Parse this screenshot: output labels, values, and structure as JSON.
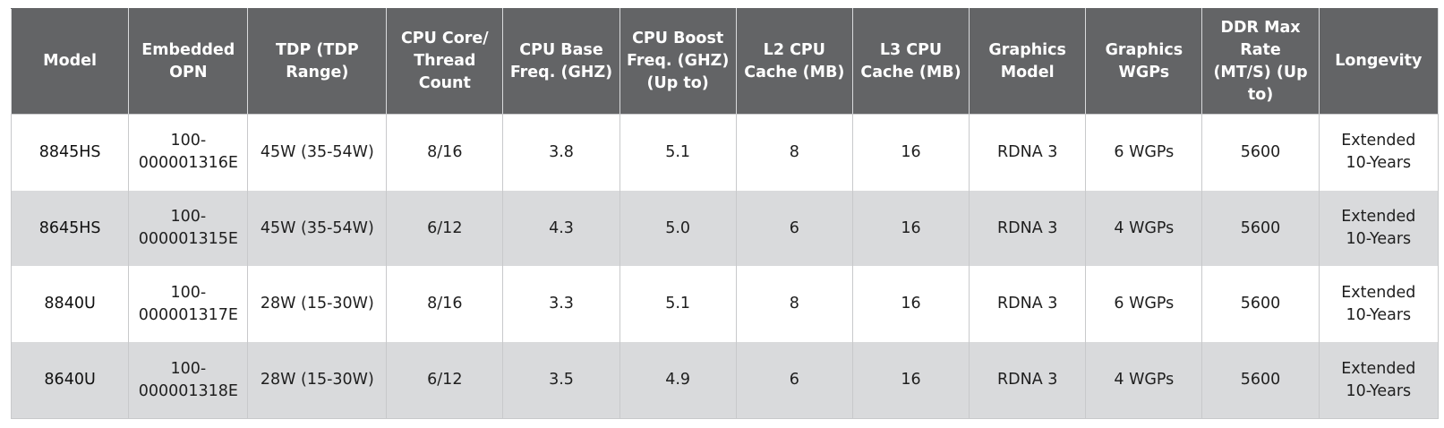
{
  "table": {
    "headers": [
      [
        "Model"
      ],
      [
        "Embedded",
        "OPN"
      ],
      [
        "TDP (TDP",
        "Range)"
      ],
      [
        "CPU Core/",
        "Thread",
        "Count"
      ],
      [
        "CPU Base",
        "Freq. (GHZ)"
      ],
      [
        "CPU Boost",
        "Freq. (GHZ)",
        "(Up to)"
      ],
      [
        "L2 CPU",
        "Cache (MB)"
      ],
      [
        "L3 CPU",
        "Cache (MB)"
      ],
      [
        "Graphics",
        "Model"
      ],
      [
        "Graphics",
        "WGPs"
      ],
      [
        "DDR Max",
        "Rate",
        "(MT/S) (Up",
        "to)"
      ],
      [
        "Longevity"
      ]
    ],
    "rows": [
      [
        [
          "8845HS"
        ],
        [
          "100-",
          "000001316E"
        ],
        [
          "45W (35-54W)"
        ],
        [
          "8/16"
        ],
        [
          "3.8"
        ],
        [
          "5.1"
        ],
        [
          "8"
        ],
        [
          "16"
        ],
        [
          "RDNA 3"
        ],
        [
          "6 WGPs"
        ],
        [
          "5600"
        ],
        [
          "Extended",
          "10-Years"
        ]
      ],
      [
        [
          "8645HS"
        ],
        [
          "100-",
          "000001315E"
        ],
        [
          "45W (35-54W)"
        ],
        [
          "6/12"
        ],
        [
          "4.3"
        ],
        [
          "5.0"
        ],
        [
          "6"
        ],
        [
          "16"
        ],
        [
          "RDNA 3"
        ],
        [
          "4 WGPs"
        ],
        [
          "5600"
        ],
        [
          "Extended",
          "10-Years"
        ]
      ],
      [
        [
          "8840U"
        ],
        [
          "100-",
          "000001317E"
        ],
        [
          "28W (15-30W)"
        ],
        [
          "8/16"
        ],
        [
          "3.3"
        ],
        [
          "5.1"
        ],
        [
          "8"
        ],
        [
          "16"
        ],
        [
          "RDNA 3"
        ],
        [
          "6 WGPs"
        ],
        [
          "5600"
        ],
        [
          "Extended",
          "10-Years"
        ]
      ],
      [
        [
          "8640U"
        ],
        [
          "100-",
          "000001318E"
        ],
        [
          "28W (15-30W)"
        ],
        [
          "6/12"
        ],
        [
          "3.5"
        ],
        [
          "4.9"
        ],
        [
          "6"
        ],
        [
          "16"
        ],
        [
          "RDNA 3"
        ],
        [
          "4 WGPs"
        ],
        [
          "5600"
        ],
        [
          "Extended",
          "10-Years"
        ]
      ]
    ]
  },
  "colors": {
    "header_bg": "#636466",
    "header_text": "#ffffff",
    "row_alt_bg": "#d9dadc",
    "row_bg": "#ffffff",
    "border": "#c8c9cb"
  }
}
